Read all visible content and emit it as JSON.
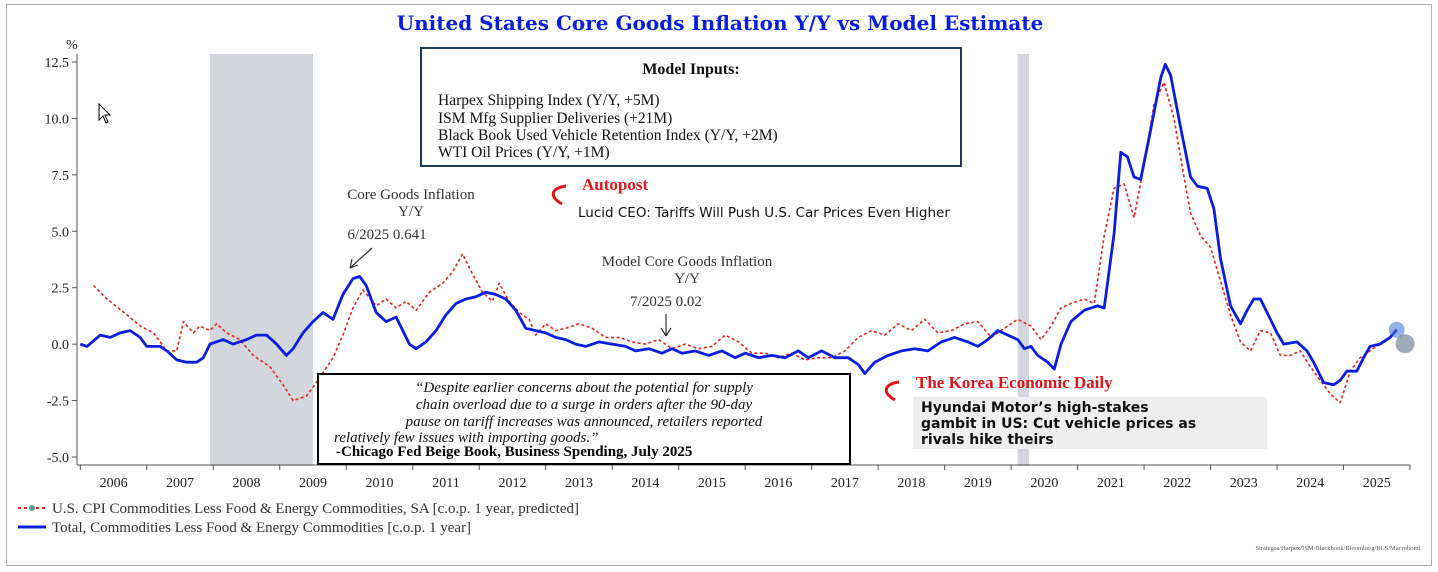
{
  "chart_data": {
    "type": "line",
    "title": "United States Core Goods Inflation Y/Y vs Model Estimate",
    "ylabel": "%",
    "ylim": [
      -5.0,
      12.5
    ],
    "yticks": [
      "12.5",
      "10.0",
      "7.5",
      "5.0",
      "2.5",
      "0.0",
      "-2.5",
      "-5.0"
    ],
    "yticks_values": [
      12.5,
      10.0,
      7.5,
      5.0,
      2.5,
      0.0,
      -2.5,
      -5.0
    ],
    "xlim": [
      2005.95,
      2026.0
    ],
    "year_labels": [
      "2006",
      "2007",
      "2008",
      "2009",
      "2010",
      "2011",
      "2012",
      "2013",
      "2014",
      "2015",
      "2016",
      "2017",
      "2018",
      "2019",
      "2020",
      "2021",
      "2022",
      "2023",
      "2024",
      "2025"
    ],
    "recessions": [
      [
        2007.95,
        2009.5
      ],
      [
        2020.1,
        2020.27
      ]
    ],
    "series": [
      {
        "name": "U.S. CPI Commodities Less Food & Energy Commodities, SA [c.o.p. 1 year, predicted]",
        "color": "#e8231b",
        "style": "dotted",
        "points": [
          [
            2006.2,
            2.6
          ],
          [
            2006.4,
            2.0
          ],
          [
            2006.7,
            1.3
          ],
          [
            2006.9,
            0.8
          ],
          [
            2007.1,
            0.5
          ],
          [
            2007.3,
            -0.3
          ],
          [
            2007.45,
            -0.3
          ],
          [
            2007.55,
            1.0
          ],
          [
            2007.7,
            0.5
          ],
          [
            2007.8,
            0.8
          ],
          [
            2007.95,
            0.6
          ],
          [
            2008.05,
            0.9
          ],
          [
            2008.2,
            0.5
          ],
          [
            2008.4,
            0.2
          ],
          [
            2008.6,
            -0.5
          ],
          [
            2008.85,
            -1.0
          ],
          [
            2009.05,
            -1.8
          ],
          [
            2009.2,
            -2.5
          ],
          [
            2009.4,
            -2.3
          ],
          [
            2009.6,
            -1.5
          ],
          [
            2009.8,
            -0.6
          ],
          [
            2009.95,
            0.4
          ],
          [
            2010.1,
            1.6
          ],
          [
            2010.25,
            2.4
          ],
          [
            2010.45,
            1.7
          ],
          [
            2010.6,
            2.0
          ],
          [
            2010.75,
            1.6
          ],
          [
            2010.9,
            1.9
          ],
          [
            2011.05,
            1.5
          ],
          [
            2011.25,
            2.3
          ],
          [
            2011.45,
            2.7
          ],
          [
            2011.6,
            3.2
          ],
          [
            2011.75,
            4.0
          ],
          [
            2011.9,
            3.1
          ],
          [
            2012.05,
            2.3
          ],
          [
            2012.2,
            1.9
          ],
          [
            2012.3,
            2.7
          ],
          [
            2012.45,
            1.9
          ],
          [
            2012.6,
            1.4
          ],
          [
            2012.75,
            1.1
          ],
          [
            2012.85,
            0.4
          ],
          [
            2013.0,
            0.9
          ],
          [
            2013.15,
            0.6
          ],
          [
            2013.3,
            0.7
          ],
          [
            2013.5,
            0.9
          ],
          [
            2013.7,
            0.7
          ],
          [
            2013.9,
            0.3
          ],
          [
            2014.1,
            0.3
          ],
          [
            2014.3,
            0.1
          ],
          [
            2014.5,
            0.0
          ],
          [
            2014.7,
            0.2
          ],
          [
            2014.9,
            -0.2
          ],
          [
            2015.1,
            0.0
          ],
          [
            2015.3,
            -0.2
          ],
          [
            2015.5,
            -0.1
          ],
          [
            2015.7,
            0.4
          ],
          [
            2015.9,
            0.1
          ],
          [
            2016.1,
            -0.4
          ],
          [
            2016.3,
            -0.4
          ],
          [
            2016.5,
            -0.6
          ],
          [
            2016.7,
            -0.4
          ],
          [
            2016.9,
            -0.7
          ],
          [
            2017.1,
            -0.6
          ],
          [
            2017.3,
            -0.6
          ],
          [
            2017.5,
            -0.3
          ],
          [
            2017.7,
            0.3
          ],
          [
            2017.9,
            0.6
          ],
          [
            2018.1,
            0.4
          ],
          [
            2018.3,
            0.9
          ],
          [
            2018.5,
            0.6
          ],
          [
            2018.7,
            1.1
          ],
          [
            2018.9,
            0.5
          ],
          [
            2019.1,
            0.6
          ],
          [
            2019.3,
            0.9
          ],
          [
            2019.5,
            1.0
          ],
          [
            2019.7,
            0.3
          ],
          [
            2019.9,
            0.7
          ],
          [
            2020.1,
            1.1
          ],
          [
            2020.3,
            0.8
          ],
          [
            2020.45,
            0.2
          ],
          [
            2020.6,
            0.8
          ],
          [
            2020.75,
            1.6
          ],
          [
            2020.9,
            1.8
          ],
          [
            2021.1,
            2.0
          ],
          [
            2021.25,
            1.8
          ],
          [
            2021.4,
            4.8
          ],
          [
            2021.55,
            6.9
          ],
          [
            2021.7,
            7.1
          ],
          [
            2021.85,
            5.6
          ],
          [
            2022.0,
            8.0
          ],
          [
            2022.15,
            10.6
          ],
          [
            2022.3,
            11.6
          ],
          [
            2022.45,
            10.0
          ],
          [
            2022.6,
            7.4
          ],
          [
            2022.7,
            5.8
          ],
          [
            2022.85,
            4.8
          ],
          [
            2023.0,
            4.3
          ],
          [
            2023.15,
            2.8
          ],
          [
            2023.3,
            1.3
          ],
          [
            2023.45,
            0.1
          ],
          [
            2023.6,
            -0.3
          ],
          [
            2023.75,
            0.6
          ],
          [
            2023.9,
            0.5
          ],
          [
            2024.05,
            -0.5
          ],
          [
            2024.2,
            -0.5
          ],
          [
            2024.35,
            -0.3
          ],
          [
            2024.5,
            -1.0
          ],
          [
            2024.65,
            -1.6
          ],
          [
            2024.8,
            -2.2
          ],
          [
            2024.95,
            -2.6
          ],
          [
            2025.1,
            -1.2
          ],
          [
            2025.25,
            -0.6
          ],
          [
            2025.4,
            -0.3
          ],
          [
            2025.55,
            0.02
          ]
        ]
      },
      {
        "name": "Total, Commodities Less Food & Energy Commodities [c.o.p. 1 year]",
        "color": "#0a1ee0",
        "style": "solid",
        "points": [
          [
            2006.0,
            0.0
          ],
          [
            2006.1,
            -0.1
          ],
          [
            2006.3,
            0.4
          ],
          [
            2006.45,
            0.3
          ],
          [
            2006.6,
            0.5
          ],
          [
            2006.75,
            0.6
          ],
          [
            2006.9,
            0.3
          ],
          [
            2007.0,
            -0.1
          ],
          [
            2007.2,
            -0.1
          ],
          [
            2007.3,
            -0.3
          ],
          [
            2007.45,
            -0.7
          ],
          [
            2007.6,
            -0.8
          ],
          [
            2007.75,
            -0.8
          ],
          [
            2007.85,
            -0.6
          ],
          [
            2007.95,
            0.0
          ],
          [
            2008.15,
            0.2
          ],
          [
            2008.3,
            0.0
          ],
          [
            2008.5,
            0.2
          ],
          [
            2008.65,
            0.4
          ],
          [
            2008.8,
            0.4
          ],
          [
            2008.95,
            0.0
          ],
          [
            2009.1,
            -0.5
          ],
          [
            2009.2,
            -0.2
          ],
          [
            2009.35,
            0.5
          ],
          [
            2009.5,
            1.0
          ],
          [
            2009.65,
            1.4
          ],
          [
            2009.8,
            1.1
          ],
          [
            2009.95,
            2.2
          ],
          [
            2010.1,
            2.9
          ],
          [
            2010.2,
            3.0
          ],
          [
            2010.3,
            2.6
          ],
          [
            2010.45,
            1.4
          ],
          [
            2010.6,
            1.0
          ],
          [
            2010.75,
            1.2
          ],
          [
            2010.85,
            0.6
          ],
          [
            2010.95,
            0.0
          ],
          [
            2011.05,
            -0.2
          ],
          [
            2011.2,
            0.1
          ],
          [
            2011.35,
            0.6
          ],
          [
            2011.5,
            1.3
          ],
          [
            2011.65,
            1.8
          ],
          [
            2011.8,
            2.0
          ],
          [
            2011.95,
            2.1
          ],
          [
            2012.1,
            2.3
          ],
          [
            2012.25,
            2.2
          ],
          [
            2012.4,
            2.0
          ],
          [
            2012.55,
            1.5
          ],
          [
            2012.7,
            0.7
          ],
          [
            2012.85,
            0.6
          ],
          [
            2013.0,
            0.5
          ],
          [
            2013.15,
            0.3
          ],
          [
            2013.3,
            0.2
          ],
          [
            2013.45,
            0.0
          ],
          [
            2013.6,
            -0.1
          ],
          [
            2013.8,
            0.1
          ],
          [
            2014.0,
            0.0
          ],
          [
            2014.2,
            -0.1
          ],
          [
            2014.35,
            -0.3
          ],
          [
            2014.55,
            -0.2
          ],
          [
            2014.75,
            -0.4
          ],
          [
            2014.9,
            -0.2
          ],
          [
            2015.05,
            -0.4
          ],
          [
            2015.25,
            -0.3
          ],
          [
            2015.45,
            -0.5
          ],
          [
            2015.65,
            -0.3
          ],
          [
            2015.85,
            -0.6
          ],
          [
            2016.0,
            -0.4
          ],
          [
            2016.2,
            -0.6
          ],
          [
            2016.4,
            -0.5
          ],
          [
            2016.6,
            -0.6
          ],
          [
            2016.8,
            -0.3
          ],
          [
            2016.95,
            -0.6
          ],
          [
            2017.15,
            -0.3
          ],
          [
            2017.35,
            -0.6
          ],
          [
            2017.55,
            -0.6
          ],
          [
            2017.7,
            -0.9
          ],
          [
            2017.8,
            -1.3
          ],
          [
            2017.95,
            -0.8
          ],
          [
            2018.15,
            -0.5
          ],
          [
            2018.35,
            -0.3
          ],
          [
            2018.55,
            -0.2
          ],
          [
            2018.75,
            -0.3
          ],
          [
            2018.95,
            0.1
          ],
          [
            2019.15,
            0.3
          ],
          [
            2019.35,
            0.1
          ],
          [
            2019.5,
            -0.1
          ],
          [
            2019.65,
            0.2
          ],
          [
            2019.8,
            0.6
          ],
          [
            2019.95,
            0.4
          ],
          [
            2020.1,
            0.2
          ],
          [
            2020.2,
            -0.2
          ],
          [
            2020.3,
            -0.1
          ],
          [
            2020.4,
            -0.5
          ],
          [
            2020.55,
            -0.8
          ],
          [
            2020.65,
            -1.1
          ],
          [
            2020.75,
            0.0
          ],
          [
            2020.9,
            1.0
          ],
          [
            2021.1,
            1.5
          ],
          [
            2021.3,
            1.7
          ],
          [
            2021.4,
            1.6
          ],
          [
            2021.55,
            4.9
          ],
          [
            2021.65,
            8.5
          ],
          [
            2021.75,
            8.3
          ],
          [
            2021.85,
            7.4
          ],
          [
            2021.95,
            7.3
          ],
          [
            2022.1,
            9.5
          ],
          [
            2022.25,
            11.8
          ],
          [
            2022.32,
            12.4
          ],
          [
            2022.4,
            11.9
          ],
          [
            2022.55,
            9.6
          ],
          [
            2022.7,
            7.4
          ],
          [
            2022.8,
            7.0
          ],
          [
            2022.95,
            6.9
          ],
          [
            2023.05,
            6.0
          ],
          [
            2023.15,
            3.8
          ],
          [
            2023.3,
            1.7
          ],
          [
            2023.45,
            0.9
          ],
          [
            2023.55,
            1.5
          ],
          [
            2023.65,
            2.0
          ],
          [
            2023.75,
            2.0
          ],
          [
            2023.9,
            1.1
          ],
          [
            2024.0,
            0.5
          ],
          [
            2024.1,
            0.0
          ],
          [
            2024.3,
            0.1
          ],
          [
            2024.45,
            -0.3
          ],
          [
            2024.55,
            -0.8
          ],
          [
            2024.7,
            -1.7
          ],
          [
            2024.85,
            -1.8
          ],
          [
            2024.95,
            -1.6
          ],
          [
            2025.05,
            -1.2
          ],
          [
            2025.2,
            -1.2
          ],
          [
            2025.3,
            -0.6
          ],
          [
            2025.4,
            -0.1
          ],
          [
            2025.55,
            0.0
          ],
          [
            2025.7,
            0.3
          ],
          [
            2025.8,
            0.64
          ]
        ]
      }
    ],
    "legend_placement": "bottom-left",
    "grid": false
  },
  "annotations": {
    "core_goods": {
      "line1": "Core Goods Inflation",
      "line2": "Y/Y",
      "value": "6/2025 0.641"
    },
    "model_goods": {
      "line1": "Model Core Goods Inflation",
      "line2": "Y/Y",
      "value": "7/2025 0.02"
    }
  },
  "model_inputs": {
    "title": "Model Inputs:",
    "items": [
      "Harpex Shipping Index (Y/Y, +5M)",
      "ISM Mfg Supplier Deliveries (+21M)",
      "Black Book Used Vehicle Retention Index (Y/Y, +2M)",
      "WTI Oil Prices (Y/Y, +1M)"
    ]
  },
  "quote": {
    "lines": [
      "“Despite earlier concerns about the potential for supply",
      "chain overload due to a surge in orders after the 90-day",
      "pause on tariff increases was announced, retailers reported",
      "relatively few issues with importing goods.”"
    ],
    "source": "-Chicago Fed Beige Book, Business Spending, July 2025"
  },
  "news": [
    {
      "source": "Autopost",
      "headline": "Lucid CEO: Tariffs Will Push U.S. Car Prices Even Higher"
    },
    {
      "source": "The Korea Economic Daily",
      "headline_lines": [
        "Hyundai Motor’s high-stakes",
        "gambit in US: Cut vehicle prices as",
        "rivals hike theirs"
      ]
    }
  ],
  "source_note": "Strategas/Harpex/ISM/Blackbook/Bloomberg/BLS/Macrobond",
  "colors": {
    "title": "#0a1ee0",
    "model": "#e8231b",
    "actual": "#0a1ee0",
    "recession": "#d3d6dc",
    "news": "#e0151a"
  }
}
